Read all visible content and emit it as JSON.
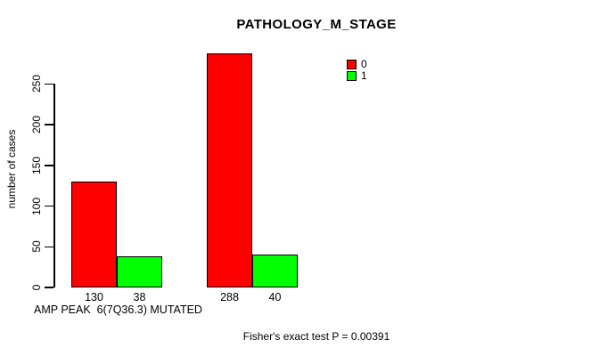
{
  "chart": {
    "title": "PATHOLOGY_M_STAGE",
    "y_axis_label": "number of cases",
    "x_axis_label": "AMP PEAK  6(7Q36.3) MUTATED",
    "footer": "Fisher's exact test P = 0.00391"
  },
  "chart_data": {
    "type": "bar",
    "title": "PATHOLOGY_M_STAGE",
    "xlabel": "AMP PEAK  6(7Q36.3) MUTATED",
    "ylabel": "number of cases",
    "ylim": [
      0,
      250
    ],
    "yticks": [
      0,
      50,
      100,
      150,
      200,
      250
    ],
    "grid": false,
    "legend_position": "top-right",
    "categories": [
      "",
      ""
    ],
    "series": [
      {
        "name": "0",
        "color": "#ff0000",
        "values": [
          130,
          288
        ]
      },
      {
        "name": "1",
        "color": "#00ff00",
        "values": [
          38,
          40
        ]
      }
    ],
    "bar_value_labels": [
      [
        130,
        38
      ],
      [
        288,
        40
      ]
    ],
    "annotation": "Fisher's exact test P = 0.00391"
  }
}
